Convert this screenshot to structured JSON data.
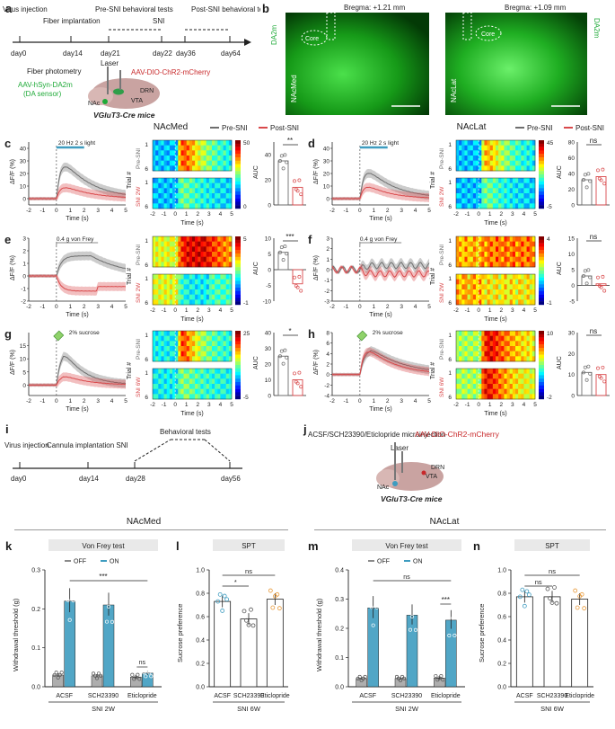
{
  "colors": {
    "pre": "#6e6e6e",
    "post": "#d9494b",
    "on": "#3e9cc0",
    "off": "#8a8a8a",
    "green": "#1faa38",
    "red": "#c8282a"
  },
  "panels": {
    "a": "a",
    "b": "b",
    "c": "c",
    "d": "d",
    "e": "e",
    "f": "f",
    "g": "g",
    "h": "h",
    "i": "i",
    "j": "j",
    "k": "k",
    "l": "l",
    "m": "m",
    "n": "n"
  },
  "timeline_a": {
    "events": [
      {
        "label": "Virus injection",
        "day": "day0"
      },
      {
        "label": "Fiber implantation",
        "day": "day14"
      },
      {
        "label": "Pre-SNI behavioral tests",
        "day": "day21"
      },
      {
        "label": "SNI",
        "day": "day22"
      },
      {
        "label": "Post-SNI behavioral tests",
        "day": "day36"
      },
      {
        "label": "",
        "day": "day64"
      }
    ],
    "fiber": "Fiber photometry",
    "laser": "Laser",
    "aav_red": "AAV-DIO-ChR2-mCherry",
    "aav_green": "AAV-hSyn-DA2m",
    "sensor": "(DA sensor)",
    "drn": "DRN",
    "vta": "VTA",
    "nac": "NAc",
    "mice": "VGluT3-Cre mice"
  },
  "histology": {
    "left": {
      "bregma": "Bregma: +1.21 mm",
      "sensor": "DA2m",
      "region": "NAcMed",
      "core": "Core"
    },
    "right": {
      "bregma": "Bregma: +1.09 mm",
      "sensor": "DA2m",
      "region": "NAcLat",
      "core": "Core"
    }
  },
  "headers": {
    "left": "NAcMed",
    "right": "NAcLat",
    "pre": "Pre-SNI",
    "post": "Post-SNI"
  },
  "axes": {
    "dff": "ΔF/F (%)",
    "time": "Time (s)",
    "trial": "Trial #",
    "auc": "AUC",
    "pre_sni": "Pre-SNI",
    "sni2w": "SNI 2W",
    "sni6w": "SNI 6W"
  },
  "stim": {
    "light": "20 Hz 2 s light",
    "vonfrey": "0.4 g von Frey",
    "sucrose": "2% sucrose"
  },
  "sig": {
    "c": "**",
    "d": "ns",
    "e": "***",
    "f": "ns",
    "g": "*",
    "h": "ns"
  },
  "colorbar": {
    "c": [
      "50",
      "0"
    ],
    "d": [
      "45",
      "-5"
    ],
    "e": [
      "5",
      "-1"
    ],
    "f": [
      "4",
      "-1"
    ],
    "g": [
      "25",
      "-5"
    ],
    "h": [
      "10",
      "-2"
    ]
  },
  "timeline_i": {
    "events": [
      {
        "label": "Virus injection",
        "day": "day0"
      },
      {
        "label": "Cannula implantation SNI",
        "day": "day14"
      },
      {
        "label": "",
        "day": "day28"
      },
      {
        "label": "Behavioral tests",
        "day": "day56"
      }
    ]
  },
  "panel_j": {
    "injection": "ACSF/SCH23390/Eticlopride microinjection",
    "laser": "Laser",
    "aav": "AAV-DIO-ChR2-mCherry",
    "drn": "DRN",
    "vta": "VTA",
    "nac": "NAc",
    "mice": "VGluT3-Cre mice"
  },
  "bottom": {
    "region_left": "NAcMed",
    "region_right": "NAcLat",
    "vonfrey_title": "Von Frey test",
    "spt_title": "SPT",
    "off": "OFF",
    "on": "ON",
    "withdrawal": "Withdrawal threshold (g)",
    "sucrose_pref": "Sucrose preference",
    "groups": [
      "ACSF",
      "SCH23390",
      "Eticlopride"
    ],
    "sni2w": "SNI 2W",
    "sni6w": "SNI 6W",
    "sig_k": [
      "***",
      "ns"
    ],
    "sig_l": [
      "*",
      "ns"
    ],
    "sig_m": [
      "ns",
      "***"
    ],
    "sig_n": [
      "ns",
      "ns"
    ]
  },
  "chart_data": [
    {
      "id": "k",
      "type": "bar",
      "title": "Von Frey test",
      "ylabel": "Withdrawal threshold (g)",
      "ylim": [
        0,
        0.3
      ],
      "categories": [
        "ACSF",
        "SCH23390",
        "Eticlopride"
      ],
      "series": [
        {
          "name": "OFF",
          "values": [
            0.03,
            0.028,
            0.025
          ]
        },
        {
          "name": "ON",
          "values": [
            0.22,
            0.21,
            0.035
          ]
        }
      ],
      "yticks": [
        "0.0",
        "0.1",
        "0.2",
        "0.3"
      ]
    },
    {
      "id": "l",
      "type": "bar",
      "title": "SPT",
      "ylabel": "Sucrose preference",
      "ylim": [
        0,
        1.0
      ],
      "categories": [
        "ACSF",
        "SCH23390",
        "Eticlopride"
      ],
      "values": [
        0.73,
        0.58,
        0.75
      ],
      "yticks": [
        "0.0",
        "0.2",
        "0.4",
        "0.6",
        "0.8",
        "1.0"
      ]
    },
    {
      "id": "m",
      "type": "bar",
      "title": "Von Frey test",
      "ylabel": "Withdrawal threshold (g)",
      "ylim": [
        0,
        0.4
      ],
      "categories": [
        "ACSF",
        "SCH23390",
        "Eticlopride"
      ],
      "series": [
        {
          "name": "OFF",
          "values": [
            0.028,
            0.028,
            0.03
          ]
        },
        {
          "name": "ON",
          "values": [
            0.27,
            0.245,
            0.228
          ]
        }
      ],
      "yticks": [
        "0.0",
        "0.1",
        "0.2",
        "0.3",
        "0.4"
      ]
    },
    {
      "id": "n",
      "type": "bar",
      "title": "SPT",
      "ylabel": "Sucrose preference",
      "ylim": [
        0,
        1.0
      ],
      "categories": [
        "ACSF",
        "SCH23390",
        "Eticlopride"
      ],
      "values": [
        0.77,
        0.77,
        0.75
      ],
      "yticks": [
        "0.0",
        "0.2",
        "0.4",
        "0.6",
        "0.8",
        "1.0"
      ]
    },
    {
      "id": "c-auc",
      "type": "bar",
      "ylabel": "AUC",
      "ylim": [
        0,
        50
      ],
      "categories": [
        "Pre-SNI",
        "SNI 2W"
      ],
      "values": [
        35,
        14
      ],
      "yticks": [
        "0",
        "20",
        "40"
      ]
    },
    {
      "id": "d-auc",
      "type": "bar",
      "ylabel": "AUC",
      "ylim": [
        0,
        80
      ],
      "categories": [
        "Pre-SNI",
        "SNI 2W"
      ],
      "values": [
        32,
        36
      ],
      "yticks": [
        "0",
        "20",
        "40",
        "60",
        "80"
      ]
    },
    {
      "id": "e-auc",
      "type": "bar",
      "ylabel": "AUC",
      "ylim": [
        -10,
        10
      ],
      "categories": [
        "Pre-SNI",
        "SNI 2W"
      ],
      "values": [
        5.5,
        -4.5
      ],
      "yticks": [
        "-10",
        "-5",
        "0",
        "5",
        "10"
      ]
    },
    {
      "id": "f-auc",
      "type": "bar",
      "ylabel": "AUC",
      "ylim": [
        -5,
        15
      ],
      "categories": [
        "Pre-SNI",
        "SNI 2W"
      ],
      "values": [
        3,
        0.5
      ],
      "yticks": [
        "-5",
        "0",
        "5",
        "10",
        "15"
      ]
    },
    {
      "id": "g-auc",
      "type": "bar",
      "ylabel": "AUC",
      "ylim": [
        0,
        40
      ],
      "categories": [
        "Pre-SNI",
        "SNI 6W"
      ],
      "values": [
        25,
        10
      ],
      "yticks": [
        "0",
        "10",
        "20",
        "30",
        "40"
      ]
    },
    {
      "id": "h-auc",
      "type": "bar",
      "ylabel": "AUC",
      "ylim": [
        0,
        30
      ],
      "categories": [
        "Pre-SNI",
        "SNI 6W"
      ],
      "values": [
        11,
        10
      ],
      "yticks": [
        "0",
        "10",
        "20",
        "30"
      ]
    }
  ]
}
